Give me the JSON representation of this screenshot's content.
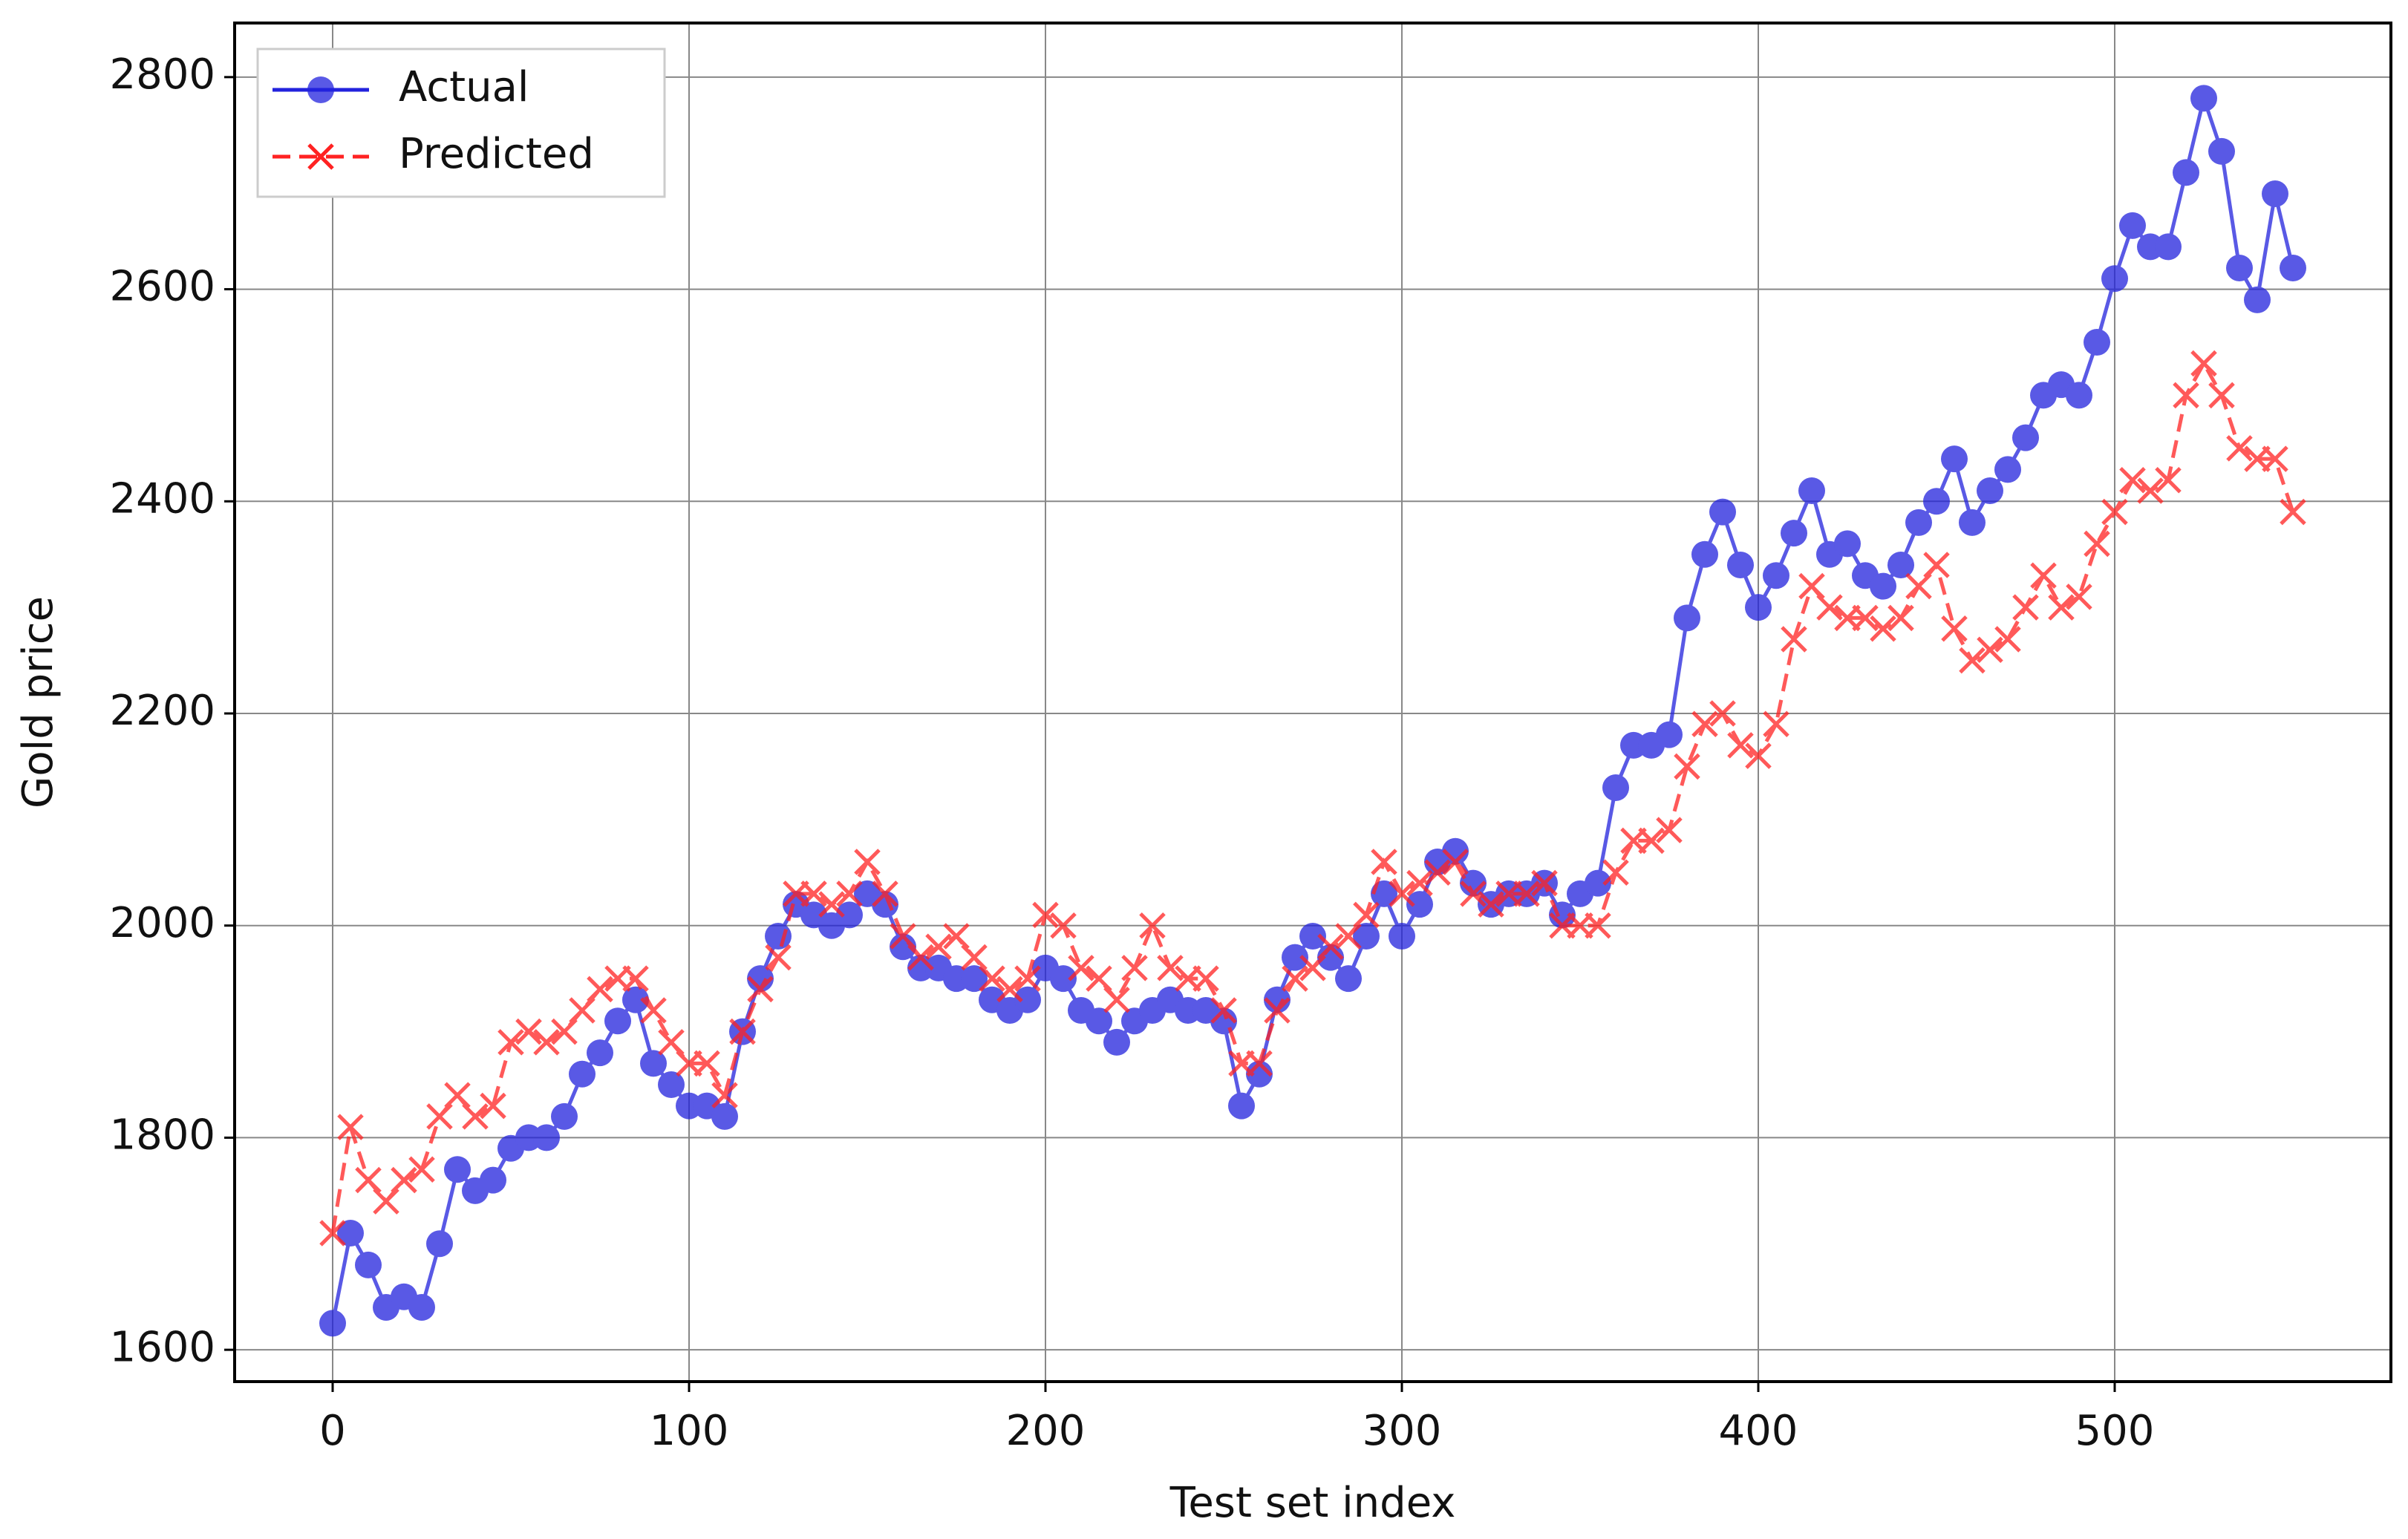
{
  "chart_data": {
    "type": "line",
    "xlabel": "Test set index",
    "ylabel": "Gold price",
    "x": [
      0,
      5,
      10,
      15,
      20,
      25,
      30,
      35,
      40,
      45,
      50,
      55,
      60,
      65,
      70,
      75,
      80,
      85,
      90,
      95,
      100,
      105,
      110,
      115,
      120,
      125,
      130,
      135,
      140,
      145,
      150,
      155,
      160,
      165,
      170,
      175,
      180,
      185,
      190,
      195,
      200,
      205,
      210,
      215,
      220,
      225,
      230,
      235,
      240,
      245,
      250,
      255,
      260,
      265,
      270,
      275,
      280,
      285,
      290,
      295,
      300,
      305,
      310,
      315,
      320,
      325,
      330,
      335,
      340,
      345,
      350,
      355,
      360,
      365,
      370,
      375,
      380,
      385,
      390,
      395,
      400,
      405,
      410,
      415,
      420,
      425,
      430,
      435,
      440,
      445,
      450,
      455,
      460,
      465,
      470,
      475,
      480,
      485,
      490,
      495,
      500,
      505,
      510,
      515,
      520,
      525,
      530,
      535,
      540,
      545,
      550
    ],
    "series": [
      {
        "name": "Actual",
        "color": "#2222dd",
        "marker": "o",
        "linestyle": "solid",
        "values": [
          1625,
          1710,
          1680,
          1640,
          1650,
          1640,
          1700,
          1770,
          1750,
          1760,
          1790,
          1800,
          1800,
          1820,
          1860,
          1880,
          1910,
          1930,
          1870,
          1850,
          1830,
          1830,
          1820,
          1900,
          1950,
          1990,
          2020,
          2010,
          2000,
          2010,
          2030,
          2020,
          1980,
          1960,
          1960,
          1950,
          1950,
          1930,
          1920,
          1930,
          1960,
          1950,
          1920,
          1910,
          1890,
          1910,
          1920,
          1930,
          1920,
          1920,
          1910,
          1830,
          1860,
          1930,
          1970,
          1990,
          1970,
          1950,
          1990,
          2030,
          1990,
          2020,
          2060,
          2070,
          2040,
          2020,
          2030,
          2030,
          2040,
          2010,
          2030,
          2040,
          2130,
          2170,
          2170,
          2180,
          2290,
          2350,
          2390,
          2340,
          2300,
          2330,
          2370,
          2410,
          2350,
          2360,
          2330,
          2320,
          2340,
          2380,
          2400,
          2440,
          2380,
          2410,
          2430,
          2460,
          2500,
          2510,
          2500,
          2550,
          2610,
          2660,
          2640,
          2640,
          2710,
          2780,
          2730,
          2620,
          2590,
          2690,
          2620
        ]
      },
      {
        "name": "Predicted",
        "color": "#ff2222",
        "marker": "x",
        "linestyle": "dashed",
        "values": [
          1710,
          1810,
          1760,
          1740,
          1760,
          1770,
          1820,
          1840,
          1820,
          1830,
          1890,
          1900,
          1890,
          1900,
          1920,
          1940,
          1950,
          1950,
          1920,
          1890,
          1870,
          1870,
          1840,
          1900,
          1940,
          1970,
          2030,
          2030,
          2020,
          2030,
          2060,
          2030,
          1990,
          1970,
          1980,
          1990,
          1970,
          1950,
          1940,
          1950,
          2010,
          2000,
          1960,
          1950,
          1930,
          1960,
          2000,
          1960,
          1950,
          1950,
          1920,
          1870,
          1870,
          1920,
          1950,
          1960,
          1980,
          1990,
          2010,
          2060,
          2030,
          2040,
          2050,
          2060,
          2030,
          2020,
          2030,
          2030,
          2040,
          2000,
          2000,
          2000,
          2050,
          2080,
          2080,
          2090,
          2150,
          2190,
          2200,
          2170,
          2160,
          2190,
          2270,
          2320,
          2300,
          2290,
          2290,
          2280,
          2290,
          2320,
          2340,
          2280,
          2250,
          2260,
          2270,
          2300,
          2330,
          2300,
          2310,
          2360,
          2390,
          2420,
          2410,
          2420,
          2500,
          2530,
          2500,
          2450,
          2440,
          2440,
          2390
        ]
      }
    ],
    "xlim": [
      -27.5,
      577.5
    ],
    "ylim": [
      1570,
      2851
    ],
    "xticks": [
      0,
      100,
      200,
      300,
      400,
      500
    ],
    "yticks": [
      1600,
      1800,
      2000,
      2200,
      2400,
      2600,
      2800
    ],
    "grid": true,
    "legend": "upper left"
  }
}
